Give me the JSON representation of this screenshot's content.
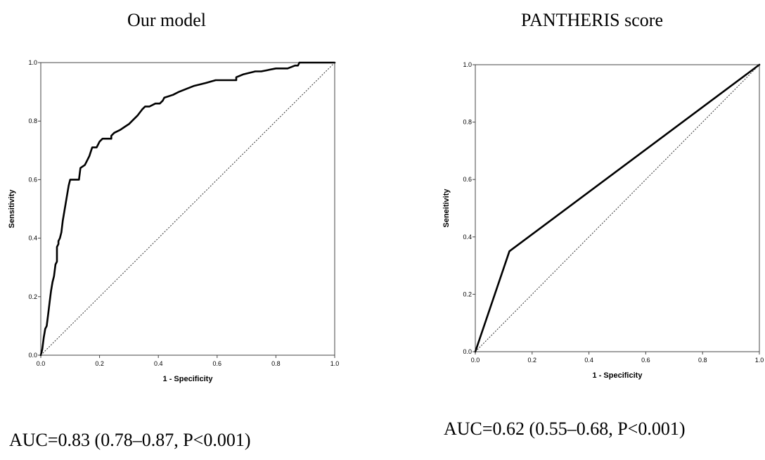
{
  "chart_data": [
    {
      "type": "line",
      "title": "Our model",
      "xlabel": "1 - Specificity",
      "ylabel": "Sensitivity",
      "xlim": [
        0,
        1
      ],
      "ylim": [
        0,
        1
      ],
      "xticks": [
        "0.0",
        "0.2",
        "0.4",
        "0.6",
        "0.8",
        "1.0"
      ],
      "yticks": [
        "0.0",
        "0.2",
        "0.4",
        "0.6",
        "0.8",
        "1.0"
      ],
      "grid": false,
      "caption": "AUC=0.83 (0.78–0.87, P<0.001)",
      "series": [
        {
          "role": "roc",
          "x": [
            0,
            0.005,
            0.01,
            0.015,
            0.02,
            0.025,
            0.03,
            0.035,
            0.04,
            0.045,
            0.05,
            0.055,
            0.055,
            0.06,
            0.06,
            0.065,
            0.07,
            0.075,
            0.08,
            0.085,
            0.09,
            0.095,
            0.1,
            0.105,
            0.11,
            0.13,
            0.135,
            0.15,
            0.165,
            0.175,
            0.19,
            0.195,
            0.2,
            0.21,
            0.22,
            0.24,
            0.24,
            0.25,
            0.27,
            0.285,
            0.3,
            0.31,
            0.33,
            0.345,
            0.355,
            0.37,
            0.39,
            0.405,
            0.415,
            0.42,
            0.45,
            0.47,
            0.495,
            0.52,
            0.56,
            0.595,
            0.62,
            0.64,
            0.665,
            0.665,
            0.69,
            0.73,
            0.75,
            0.8,
            0.84,
            0.865,
            0.875,
            0.88,
            0.9,
            1.0
          ],
          "y": [
            0,
            0.02,
            0.06,
            0.09,
            0.1,
            0.14,
            0.18,
            0.22,
            0.25,
            0.27,
            0.31,
            0.32,
            0.37,
            0.38,
            0.39,
            0.4,
            0.42,
            0.46,
            0.49,
            0.52,
            0.55,
            0.58,
            0.6,
            0.6,
            0.6,
            0.6,
            0.64,
            0.65,
            0.68,
            0.71,
            0.71,
            0.72,
            0.73,
            0.74,
            0.74,
            0.74,
            0.75,
            0.76,
            0.77,
            0.78,
            0.79,
            0.8,
            0.82,
            0.84,
            0.85,
            0.85,
            0.86,
            0.86,
            0.87,
            0.88,
            0.89,
            0.9,
            0.91,
            0.92,
            0.93,
            0.94,
            0.94,
            0.94,
            0.94,
            0.95,
            0.96,
            0.97,
            0.97,
            0.98,
            0.98,
            0.99,
            0.99,
            1.0,
            1.0,
            1.0
          ]
        },
        {
          "role": "reference",
          "x": [
            0,
            1
          ],
          "y": [
            0,
            1
          ]
        }
      ]
    },
    {
      "type": "line",
      "title": "PANTHERIS score",
      "xlabel": "1 - Specificity",
      "ylabel": "Seneitivity",
      "xlim": [
        0,
        1
      ],
      "ylim": [
        0,
        1
      ],
      "xticks": [
        "0.0",
        "0.2",
        "0.4",
        "0.6",
        "0.8",
        "1.0"
      ],
      "yticks": [
        "0.0",
        "0.2",
        "0.4",
        "0.6",
        "0.8",
        "1.0"
      ],
      "grid": false,
      "caption": "AUC=0.62 (0.55–0.68, P<0.001)",
      "series": [
        {
          "role": "roc",
          "x": [
            0,
            0.12,
            1.0
          ],
          "y": [
            0,
            0.35,
            1.0
          ]
        },
        {
          "role": "reference",
          "x": [
            0,
            1
          ],
          "y": [
            0,
            1
          ]
        }
      ]
    }
  ]
}
